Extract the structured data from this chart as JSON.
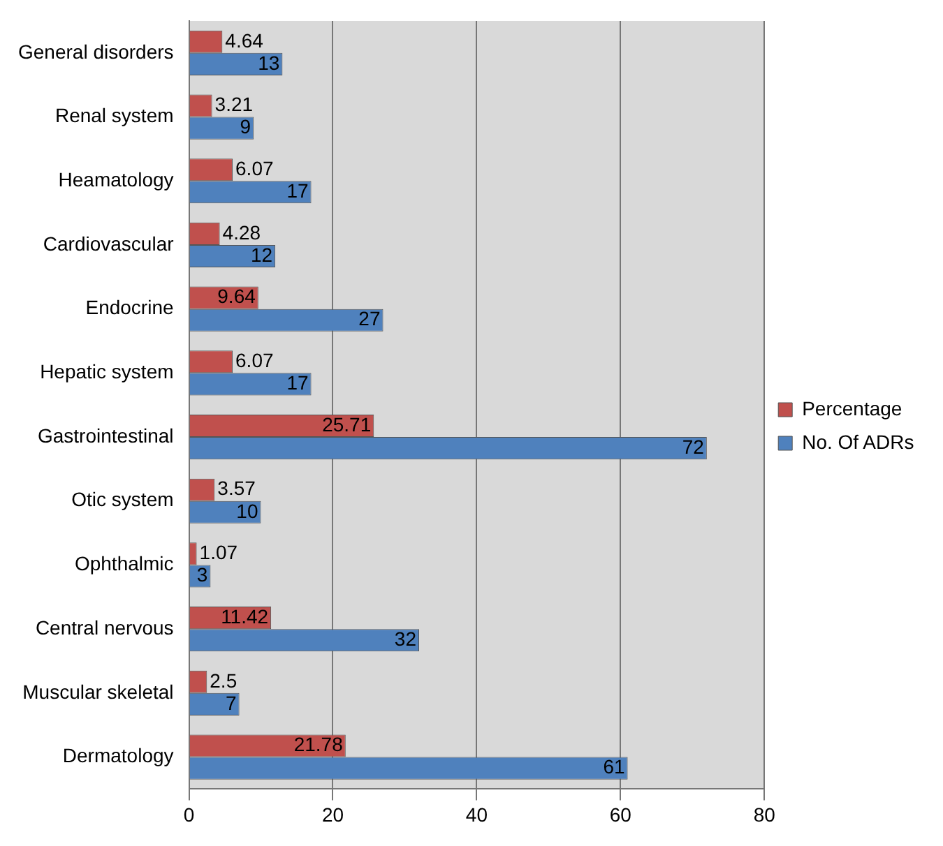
{
  "chart_data": {
    "type": "bar",
    "orientation": "horizontal",
    "categories": [
      "General disorders",
      "Renal system",
      "Heamatology",
      "Cardiovascular",
      "Endocrine",
      "Hepatic system",
      "Gastrointestinal",
      "Otic system",
      "Ophthalmic",
      "Central nervous",
      "Muscular skeletal",
      "Dermatology"
    ],
    "series": [
      {
        "name": "Percentage",
        "color": "#c0504d",
        "values": [
          4.64,
          3.21,
          6.07,
          4.28,
          9.64,
          6.07,
          25.71,
          3.57,
          1.07,
          11.42,
          2.5,
          21.78
        ]
      },
      {
        "name": "No. Of ADRs",
        "color": "#4f81bd",
        "values": [
          13,
          9,
          17,
          12,
          27,
          17,
          72,
          10,
          3,
          32,
          7,
          61
        ]
      }
    ],
    "xlim": [
      0,
      80
    ],
    "xticks": [
      0,
      20,
      40,
      60,
      80
    ],
    "grid": "x",
    "legend": "right",
    "data_labels": true
  }
}
